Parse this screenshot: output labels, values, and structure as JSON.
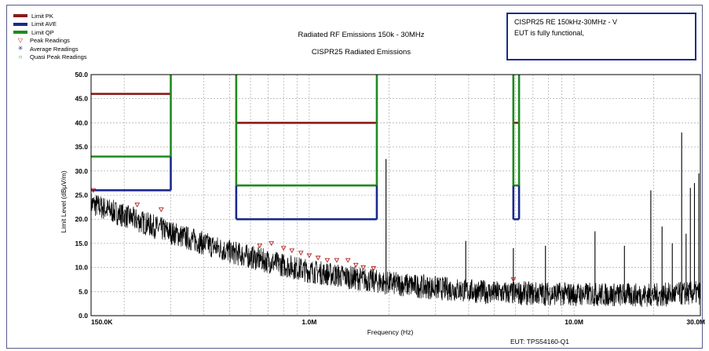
{
  "chart_data": {
    "type": "line",
    "title": "Radiated RF Emissions 150k - 30MHz",
    "subtitle": "CISPR25 Radiated Emissions",
    "xlabel": "Frequency (Hz)",
    "ylabel": "Limit Level (dBµV/m)",
    "xscale": "log",
    "xlim": [
      150000,
      30000000
    ],
    "ylim": [
      0,
      50
    ],
    "grid": true,
    "legend_position": "top-left",
    "x_tick_labels": [
      {
        "value": 150000,
        "label": "150.0K"
      },
      {
        "value": 1000000,
        "label": "1.0M"
      },
      {
        "value": 10000000,
        "label": "10.0M"
      },
      {
        "value": 30000000,
        "label": "30.0M"
      }
    ],
    "y_ticks": [
      0,
      5,
      10,
      15,
      20,
      25,
      30,
      35,
      40,
      45,
      50
    ],
    "y_tick_labels": [
      "0.0",
      "5.0",
      "10.0",
      "15.0",
      "20.0",
      "25.0",
      "30.0",
      "35.0",
      "40.0",
      "45.0",
      "50.0"
    ],
    "limit_bands": [
      {
        "name": "Limit PK",
        "color": "#8b1a1a",
        "segments": [
          {
            "x": [
              150000,
              300000
            ],
            "y": 46
          },
          {
            "x": [
              530000,
              1800000
            ],
            "y": 40
          },
          {
            "x": [
              5900000,
              6200000
            ],
            "y": 40
          }
        ]
      },
      {
        "name": "Limit AVE",
        "color": "#1a2a8c",
        "segments": [
          {
            "x": [
              150000,
              300000
            ],
            "y": 26
          },
          {
            "x": [
              530000,
              1800000
            ],
            "y": 20
          },
          {
            "x": [
              5900000,
              6200000
            ],
            "y": 20
          }
        ]
      },
      {
        "name": "Limit QP",
        "color": "#1f8a1f",
        "segments": [
          {
            "x": [
              150000,
              300000
            ],
            "y": 33
          },
          {
            "x": [
              530000,
              1800000
            ],
            "y": 27
          },
          {
            "x": [
              5900000,
              6200000
            ],
            "y": 27
          }
        ]
      }
    ],
    "noise_floor": {
      "name": "Measured emissions",
      "color": "#000000",
      "x": [
        150000,
        200000,
        300000,
        500000,
        700000,
        1000000,
        1500000,
        2000000,
        3000000,
        5000000,
        10000000,
        20000000,
        30000000
      ],
      "y": [
        23,
        20.5,
        17,
        13,
        11,
        9,
        7.5,
        6.5,
        5.5,
        4.5,
        4.2,
        4,
        4.5
      ],
      "spread": 2.5
    },
    "spurs": [
      {
        "x": 1950000,
        "y": 32.5
      },
      {
        "x": 3900000,
        "y": 15.5
      },
      {
        "x": 5900000,
        "y": 14
      },
      {
        "x": 7800000,
        "y": 14.5
      },
      {
        "x": 12000000,
        "y": 17.5
      },
      {
        "x": 15500000,
        "y": 14.5
      },
      {
        "x": 19500000,
        "y": 26
      },
      {
        "x": 21500000,
        "y": 18.5
      },
      {
        "x": 23500000,
        "y": 15
      },
      {
        "x": 25500000,
        "y": 38
      },
      {
        "x": 26500000,
        "y": 17
      },
      {
        "x": 27500000,
        "y": 26.5
      },
      {
        "x": 28500000,
        "y": 27.5
      },
      {
        "x": 29600000,
        "y": 29.5
      }
    ],
    "peak_readings": [
      {
        "x": 153000,
        "y": 26
      },
      {
        "x": 224000,
        "y": 23
      },
      {
        "x": 276000,
        "y": 22
      },
      {
        "x": 650000,
        "y": 14.5
      },
      {
        "x": 720000,
        "y": 15
      },
      {
        "x": 800000,
        "y": 14
      },
      {
        "x": 860000,
        "y": 13.5
      },
      {
        "x": 930000,
        "y": 13
      },
      {
        "x": 1000000,
        "y": 12.5
      },
      {
        "x": 1080000,
        "y": 12
      },
      {
        "x": 1170000,
        "y": 11.5
      },
      {
        "x": 1270000,
        "y": 11.5
      },
      {
        "x": 1400000,
        "y": 11.5
      },
      {
        "x": 1500000,
        "y": 10.5
      },
      {
        "x": 1600000,
        "y": 10
      },
      {
        "x": 1750000,
        "y": 9.8
      },
      {
        "x": 5900000,
        "y": 7.5
      }
    ]
  },
  "legend": {
    "items": [
      {
        "label": "Limit PK",
        "kind": "line",
        "color": "#8b1a1a"
      },
      {
        "label": "Limit AVE",
        "kind": "line",
        "color": "#1a2a8c"
      },
      {
        "label": "Limit QP",
        "kind": "line",
        "color": "#1f8a1f"
      },
      {
        "label": "Peak Readings",
        "kind": "symbol",
        "symbol": "▽",
        "color": "#b52020"
      },
      {
        "label": "Average Readings",
        "kind": "symbol",
        "symbol": "✳",
        "color": "#1a2a8c"
      },
      {
        "label": "Quasi Peak Readings",
        "kind": "symbol",
        "symbol": "○",
        "color": "#1f8a1f"
      }
    ]
  },
  "notes": {
    "line1": "CISPR25 RE 150kHz-30MHz - V",
    "line2": "EUT is fully functional,"
  },
  "footer": {
    "eut": "EUT: TPS54160-Q1"
  },
  "colors": {
    "grid": "#9a9a9a",
    "frame": "#5a5a8c",
    "note_border": "#1c2a8a"
  }
}
